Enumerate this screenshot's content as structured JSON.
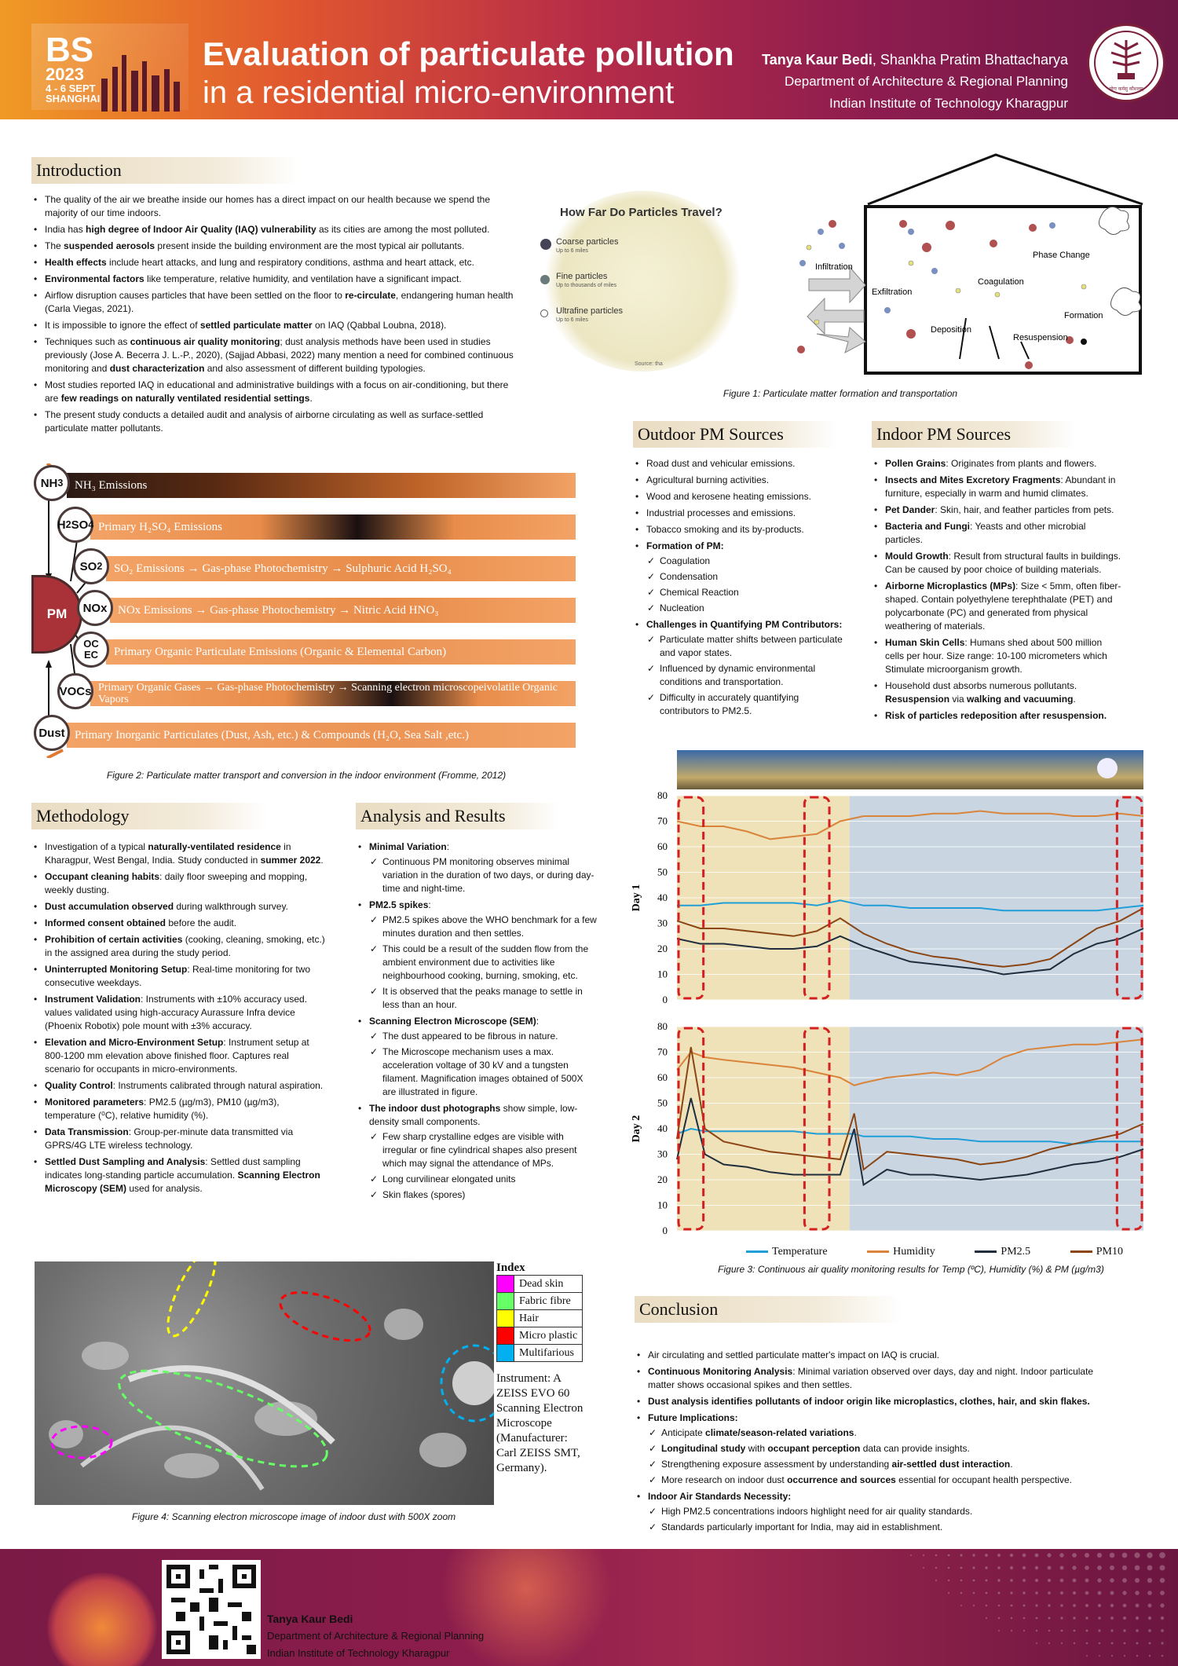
{
  "header": {
    "logo_big": "BS",
    "logo_year": "2023",
    "logo_dates": "4 - 6 SEPT",
    "logo_city": "SHANGHAI",
    "title_line1": "Evaluation of particulate pollution",
    "title_line2": "in a residential micro-environment",
    "author1": "Tanya Kaur Bedi",
    "author2": ", Shankha Pratim Bhattacharya",
    "dept": "Department of Architecture & Regional Planning",
    "inst": "Indian Institute of Technology Kharagpur",
    "seal_text": "योगः कर्मसु कौशलम्"
  },
  "intro": {
    "title": "Introduction",
    "items": [
      "The quality of the air we breathe inside our homes has a direct impact on our health because we spend the majority of our time indoors.",
      "India has **high degree of Indoor Air Quality (IAQ) vulnerability** as its cities are among the most polluted.",
      "The **suspended aerosols** present inside the building environment are the most typical air pollutants.",
      "**Health effects** include heart attacks, and lung and respiratory conditions, asthma and heart attack, etc.",
      "**Environmental factors** like temperature, relative humidity, and ventilation have a significant impact.",
      "Airflow disruption causes particles that have been settled on the floor to **re-circulate**, endangering human health (Carla Viegas, 2021).",
      "It is impossible to ignore the effect of **settled particulate matter** on IAQ (Qabbal Loubna, 2018).",
      "Techniques such as **continuous air quality monitoring**; dust analysis methods have been used in studies previously (Jose A. Becerra J. L.-P., 2020), (Sajjad Abbasi, 2022) many mention a need for combined continuous monitoring and **dust characterization** and also assessment of different building typologies.",
      "Most studies reported IAQ in educational and administrative buildings with a focus on air-conditioning, but there are **few readings on naturally ventilated residential settings**.",
      "The present study conducts a detailed audit and analysis of airborne circulating as well as surface-settled particulate matter pollutants."
    ]
  },
  "fig1": {
    "travel_title": "How Far Do Particles Travel?",
    "coarse": "Coarse particles",
    "coarse_sub": "Up to 6 miles",
    "fine": "Fine particles",
    "fine_sub": "Up to thousands of miles",
    "ultra": "Ultrafine particles",
    "ultra_sub": "Up to 6 miles",
    "source": "Source: tha",
    "infiltration": "Infiltration",
    "exfiltration": "Exfiltration",
    "deposition": "Deposition",
    "coagulation": "Coagulation",
    "phase": "Phase Change",
    "formation": "Formation",
    "resuspension": "Resuspension",
    "caption": "Figure 1: Particulate matter formation and transportation"
  },
  "fig2": {
    "pm": "PM",
    "nodes": [
      "NH3",
      "H2SO4",
      "SO2",
      "NOx",
      "OC EC",
      "VOCs",
      "Dust"
    ],
    "rows": [
      "NH₃ Emissions",
      "Primary H₂SO₄ Emissions",
      "SO₂ Emissions → Gas-phase Photochemistry → Sulphuric Acid H₂SO₄",
      "NOx Emissions → Gas-phase Photochemistry → Nitric Acid HNO₃",
      "Primary Organic Particulate Emissions (Organic & Elemental Carbon)",
      "Primary Organic Gases → Gas-phase Photochemistry → Scanning electron microscopeivolatile Organic Vapors",
      "Primary Inorganic Particulates (Dust, Ash, etc.) & Compounds (H₂O, Sea Salt ,etc.)"
    ],
    "caption": "Figure 2: Particulate matter transport and conversion in the indoor environment (Fromme, 2012)"
  },
  "outdoor": {
    "title": "Outdoor PM Sources",
    "items": [
      "Road dust and vehicular emissions.",
      "Agricultural burning activities.",
      "Wood and kerosene heating emissions.",
      "Industrial processes and emissions.",
      "Tobacco smoking and its by-products."
    ],
    "formation": "**Formation of PM:**",
    "formation_items": [
      "Coagulation",
      "Condensation",
      "Chemical Reaction",
      "Nucleation"
    ],
    "challenges": "**Challenges in Quantifying PM Contributors:**",
    "challenge_items": [
      "Particulate matter shifts between particulate and vapor states.",
      "Influenced by dynamic environmental conditions and transportation.",
      "Difficulty in accurately quantifying contributors to PM2.5."
    ]
  },
  "indoor": {
    "title": "Indoor PM Sources",
    "items": [
      "**Pollen Grains**: Originates from plants and flowers.",
      "**Insects and Mites Excretory Fragments**: Abundant in furniture, especially in warm and humid climates.",
      "**Pet Dander**: Skin, hair, and feather particles from pets.",
      "**Bacteria and Fungi**: Yeasts and other microbial particles.",
      "**Mould Growth**: Result from structural faults in buildings. Can be caused by poor choice of building materials.",
      "**Airborne Microplastics (MPs)**: Size < 5mm, often fiber-shaped. Contain polyethylene terephthalate (PET) and polycarbonate (PC) and generated from physical weathering of materials.",
      "**Human Skin Cells**: Humans shed about 500 million cells per hour. Size range: 10-100 micrometers which Stimulate microorganism growth.",
      "Household dust absorbs numerous pollutants. **Resuspension** via **walking and vacuuming**.",
      "**Risk of particles redeposition after resuspension.**"
    ]
  },
  "methodology": {
    "title": "Methodology",
    "items": [
      "Investigation of a typical **naturally-ventilated residence** in Kharagpur, West Bengal, India. Study conducted in **summer 2022**.",
      "**Occupant cleaning habits**: daily floor sweeping and mopping, weekly dusting.",
      "**Dust accumulation observed** during walkthrough survey.",
      "**Informed consent obtained** before the audit.",
      "**Prohibition of certain activities** (cooking, cleaning, smoking, etc.) in the assigned area during the study period.",
      "**Uninterrupted Monitoring Setup**: Real-time monitoring for two consecutive weekdays.",
      "**Instrument Validation**: Instruments with ±10% accuracy used. values validated using high-accuracy Aurassure Infra device (Phoenix Robotix) pole mount with ±3% accuracy.",
      "**Elevation and Micro-Environment Setup**: Instrument setup at 800-1200 mm elevation above finished floor. Captures real scenario for occupants in micro-environments.",
      "**Quality Control**: Instruments calibrated through natural aspiration.",
      "**Monitored parameters**: PM2.5 (µg/m3), PM10 (µg/m3), temperature (⁰C), relative humidity (%).",
      "**Data Transmission**: Group-per-minute data transmitted via GPRS/4G LTE wireless technology.",
      "**Settled Dust Sampling and Analysis**: Settled dust sampling indicates long-standing particle accumulation. **Scanning Electron Microscopy (SEM)** used for analysis."
    ]
  },
  "analysis": {
    "title": "Analysis and Results",
    "groups": [
      {
        "head": "**Minimal Variation**:",
        "items": [
          "Continuous PM monitoring observes minimal variation in the duration of two days, or during day-time and night-time."
        ]
      },
      {
        "head": "**PM2.5 spikes**:",
        "items": [
          "PM2.5 spikes above the WHO benchmark for a few minutes duration and then settles.",
          "This could be a result of the sudden flow from the ambient environment due to activities like neighbourhood cooking, burning, smoking, etc.",
          "It is observed that the peaks manage to settle in less than an hour."
        ]
      },
      {
        "head": "**Scanning Electron Microscope (SEM)**:",
        "items": [
          "The dust appeared to be fibrous in nature.",
          "The Microscope mechanism uses a max. acceleration voltage of 30 kV and a tungsten filament. Magnification images obtained of 500X are illustrated in figure."
        ]
      },
      {
        "head": "**The indoor dust photographs** show simple, low-density small components.",
        "items": [
          "Few sharp crystalline edges are visible with irregular or fine cylindrical shapes also present which may signal the attendance of MPs.",
          "Long curvilinear elongated units",
          "Skin flakes (spores)"
        ]
      }
    ]
  },
  "fig4": {
    "index_title": "Index",
    "index": [
      {
        "label": "Dead skin",
        "color": "#ff00ff"
      },
      {
        "label": "Fabric fibre",
        "color": "#66ff66"
      },
      {
        "label": "Hair",
        "color": "#ffff00"
      },
      {
        "label": "Micro plastic",
        "color": "#ff0000"
      },
      {
        "label": "Multifarious",
        "color": "#00b0f0"
      }
    ],
    "instrument": "Instrument: A ZEISS EVO 60 Scanning Electron Microscope (Manufacturer: Carl ZEISS SMT, Germany).",
    "caption": "Figure 4: Scanning electron microscope image of indoor dust with 500X zoom"
  },
  "chart_data": [
    {
      "type": "line",
      "ylabel": "Day 1",
      "ylim": [
        0,
        80
      ],
      "yticks": [
        0,
        10,
        20,
        30,
        40,
        50,
        60,
        70,
        80
      ],
      "x": [
        0,
        0.05,
        0.1,
        0.15,
        0.2,
        0.25,
        0.3,
        0.35,
        0.4,
        0.45,
        0.5,
        0.55,
        0.6,
        0.65,
        0.7,
        0.75,
        0.8,
        0.85,
        0.9,
        0.95,
        1.0
      ],
      "series": [
        {
          "name": "Temperature",
          "color": "#1f9ed8",
          "values": [
            37,
            37,
            38,
            38,
            38,
            38,
            37,
            39,
            37,
            37,
            36,
            36,
            36,
            36,
            35,
            35,
            35,
            35,
            35,
            36,
            37
          ]
        },
        {
          "name": "Humidity",
          "color": "#d9843a",
          "values": [
            70,
            68,
            68,
            66,
            63,
            64,
            65,
            70,
            72,
            72,
            72,
            73,
            73,
            74,
            73,
            73,
            73,
            72,
            72,
            73,
            72
          ]
        },
        {
          "name": "PM2.5",
          "color": "#1f2d3d",
          "values": [
            24,
            22,
            22,
            21,
            20,
            20,
            21,
            25,
            21,
            18,
            15,
            14,
            13,
            12,
            10,
            11,
            12,
            18,
            22,
            24,
            28
          ]
        },
        {
          "name": "PM10",
          "color": "#8b4513",
          "values": [
            31,
            28,
            28,
            27,
            26,
            25,
            27,
            32,
            26,
            22,
            19,
            17,
            16,
            14,
            13,
            14,
            16,
            22,
            28,
            31,
            36
          ]
        }
      ]
    },
    {
      "type": "line",
      "ylabel": "Day 2",
      "ylim": [
        0,
        80
      ],
      "yticks": [
        0,
        10,
        20,
        30,
        40,
        50,
        60,
        70,
        80
      ],
      "x": [
        0,
        0.03,
        0.06,
        0.1,
        0.15,
        0.2,
        0.25,
        0.3,
        0.35,
        0.38,
        0.4,
        0.45,
        0.5,
        0.55,
        0.6,
        0.65,
        0.7,
        0.75,
        0.8,
        0.85,
        0.9,
        0.95,
        1.0
      ],
      "series": [
        {
          "name": "Temperature",
          "color": "#1f9ed8",
          "values": [
            38,
            40,
            39,
            39,
            39,
            39,
            39,
            38,
            38,
            38,
            37,
            37,
            37,
            36,
            36,
            35,
            35,
            35,
            35,
            34,
            35,
            35,
            35
          ]
        },
        {
          "name": "Humidity",
          "color": "#d9843a",
          "values": [
            63,
            70,
            68,
            67,
            66,
            65,
            64,
            62,
            60,
            57,
            58,
            60,
            61,
            62,
            61,
            63,
            68,
            71,
            72,
            73,
            73,
            74,
            75
          ]
        },
        {
          "name": "PM2.5",
          "color": "#1f2d3d",
          "values": [
            28,
            52,
            30,
            26,
            25,
            23,
            22,
            22,
            22,
            40,
            18,
            24,
            22,
            22,
            21,
            20,
            21,
            22,
            24,
            26,
            27,
            29,
            32
          ]
        },
        {
          "name": "PM10",
          "color": "#8b4513",
          "values": [
            36,
            72,
            40,
            35,
            33,
            31,
            30,
            29,
            28,
            46,
            24,
            31,
            30,
            29,
            28,
            26,
            27,
            29,
            32,
            34,
            36,
            38,
            42
          ]
        }
      ]
    }
  ],
  "fig3": {
    "legend": [
      "Temperature",
      "Humidity",
      "PM2.5",
      "PM10"
    ],
    "caption": "Figure 3: Continuous air quality monitoring results for  Temp (ºC), Humidity (%) & PM (µg/m3)"
  },
  "conclusion": {
    "title": "Conclusion",
    "items": [
      {
        "t": "Air circulating and settled particulate matter's impact on IAQ is crucial.",
        "sub": []
      },
      {
        "t": "**Continuous Monitoring Analysis**: Minimal variation observed over days, day and night. Indoor particulate matter shows occasional spikes and then settles.",
        "sub": []
      },
      {
        "t": "**Dust analysis identifies pollutants of indoor origin like microplastics, clothes, hair, and skin flakes.**",
        "sub": []
      },
      {
        "t": "**Future Implications:**",
        "sub": [
          "Anticipate **climate/season-related variations**.",
          "**Longitudinal study** with **occupant perception** data can provide insights.",
          "Strengthening exposure assessment by understanding **air-settled dust interaction**.",
          "More research on indoor dust **occurrence and sources** essential for occupant health perspective."
        ]
      },
      {
        "t": "**Indoor Air Standards Necessity:**",
        "sub": [
          "High PM2.5 concentrations indoors highlight need for air quality standards.",
          "Standards particularly important for India, may aid in establishment."
        ]
      }
    ]
  },
  "footer": {
    "name": "Tanya Kaur Bedi",
    "dept": "Department of Architecture & Regional Planning",
    "inst": "Indian Institute of Technology Kharagpur"
  }
}
